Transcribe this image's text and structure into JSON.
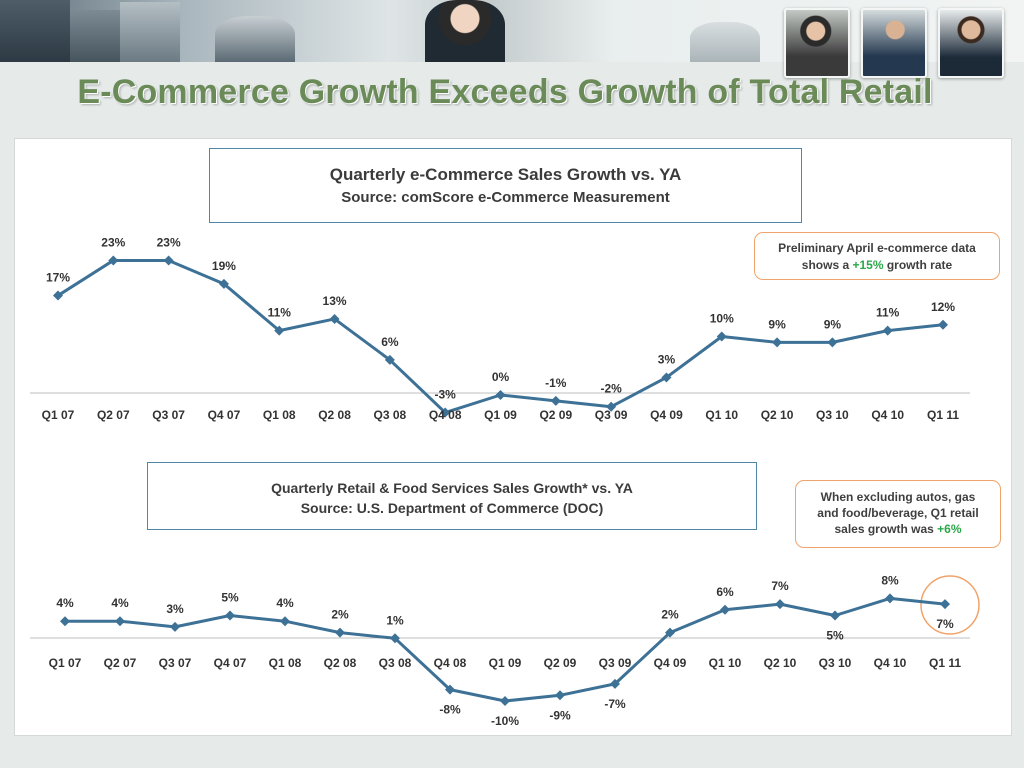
{
  "slide": {
    "title": "E-Commerce Growth Exceeds Growth of Total Retail"
  },
  "banner": {
    "photos": [
      "business-people-photo",
      "businesswoman-photo",
      "meeting-thumbnail",
      "handshake-thumbnail",
      "businessman-thumbnail"
    ]
  },
  "colors": {
    "line": "#3d7196",
    "marker": "#3d7196",
    "title_text": "#6a8a58",
    "callout_border": "#f0a36a",
    "highlight": "#2aa84a",
    "title_box_border": "#4f87a6"
  },
  "callouts": {
    "top": {
      "line1": "Preliminary April e-commerce data",
      "line2_pre": "shows a ",
      "line2_value": "+15%",
      "line2_post": " growth rate"
    },
    "bottom": {
      "line1": "When excluding autos, gas",
      "line2": "and food/beverage, Q1 retail",
      "line3_pre": "sales growth was ",
      "line3_value": "+6%"
    }
  },
  "chart_data": [
    {
      "type": "line",
      "title": "Quarterly e-Commerce Sales Growth vs. YA",
      "subtitle": "Source: comScore e-Commerce Measurement",
      "categories": [
        "Q1 07",
        "Q2 07",
        "Q3 07",
        "Q4 07",
        "Q1 08",
        "Q2 08",
        "Q3 08",
        "Q4 08",
        "Q1 09",
        "Q2 09",
        "Q3 09",
        "Q4 09",
        "Q1 10",
        "Q2 10",
        "Q3 10",
        "Q4 10",
        "Q1 11"
      ],
      "values": [
        17,
        23,
        23,
        19,
        11,
        13,
        6,
        -3,
        0,
        -1,
        -2,
        3,
        10,
        9,
        9,
        11,
        12
      ],
      "data_labels": [
        "17%",
        "23%",
        "23%",
        "19%",
        "11%",
        "13%",
        "6%",
        "-3%",
        "0%",
        "-1%",
        "-2%",
        "3%",
        "10%",
        "9%",
        "9%",
        "11%",
        "12%"
      ],
      "ylim": [
        -3,
        24
      ],
      "grid": false,
      "xlabel": "",
      "ylabel": ""
    },
    {
      "type": "line",
      "title": "Quarterly Retail & Food Services Sales Growth* vs. YA",
      "subtitle": "Source: U.S. Department of Commerce (DOC)",
      "categories": [
        "Q1 07",
        "Q2 07",
        "Q3 07",
        "Q4 07",
        "Q1 08",
        "Q2 08",
        "Q3 08",
        "Q4 08",
        "Q1 09",
        "Q2 09",
        "Q3 09",
        "Q4 09",
        "Q1 10",
        "Q2 10",
        "Q3 10",
        "Q4 10",
        "Q1 11"
      ],
      "values": [
        4,
        4,
        3,
        5,
        4,
        2,
        1,
        -8,
        -10,
        -9,
        -7,
        2,
        6,
        7,
        5,
        8,
        7
      ],
      "data_labels": [
        "4%",
        "4%",
        "3%",
        "5%",
        "4%",
        "2%",
        "1%",
        "-8%",
        "-10%",
        "-9%",
        "-7%",
        "2%",
        "6%",
        "7%",
        "5%",
        "8%",
        "7%"
      ],
      "ylim": [
        -10,
        9
      ],
      "grid": false,
      "xlabel": "",
      "ylabel": "",
      "highlighted_point": "Q1 11"
    }
  ]
}
